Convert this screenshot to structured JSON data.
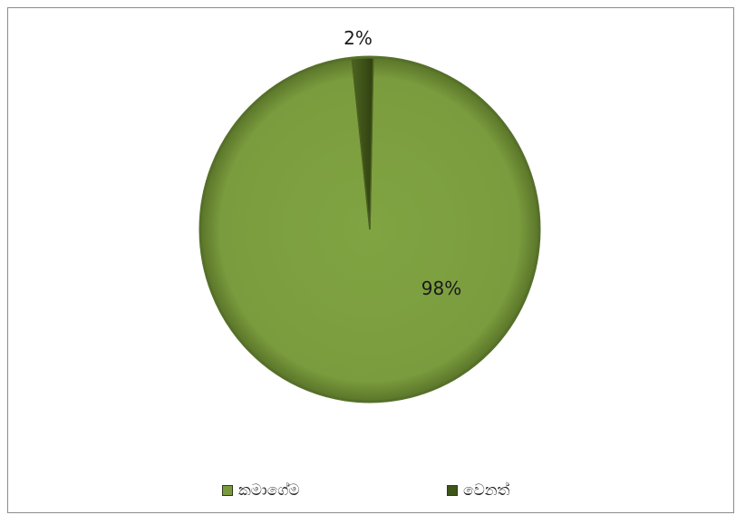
{
  "chart_data": {
    "type": "pie",
    "slices": [
      {
        "name": "කමාගේම",
        "value": 98,
        "label": "98%",
        "color": "#7a9b3d"
      },
      {
        "name": "වෙනත්",
        "value": 2,
        "label": "2%",
        "color": "#3e5419"
      }
    ],
    "legend_position": "bottom"
  }
}
